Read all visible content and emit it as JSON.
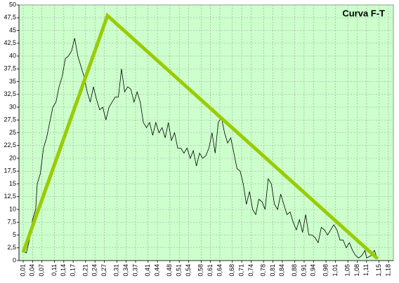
{
  "chart_data": {
    "type": "line",
    "title": "Curva F-T",
    "title_color": "#ff0000",
    "background": "#ccffcc",
    "grid": true,
    "xlim": [
      -0.0035,
      1.1959
    ],
    "ylim": [
      0,
      50
    ],
    "yticks": [
      0,
      {
        "value": 2.5,
        "label": "2,5"
      },
      5,
      {
        "value": 7.5,
        "label": "7,5"
      },
      10,
      {
        "value": 12.5,
        "label": "12,5"
      },
      15,
      {
        "value": 17.5,
        "label": "17,5"
      },
      20,
      {
        "value": 22.5,
        "label": "22,5"
      },
      25,
      {
        "value": 27.5,
        "label": "27,5"
      },
      30,
      {
        "value": 32.5,
        "label": "32,5"
      },
      35,
      {
        "value": 37.5,
        "label": "37,5"
      },
      40,
      {
        "value": 42.5,
        "label": "42,5"
      },
      45,
      {
        "value": 47.5,
        "label": "47,5"
      },
      50
    ],
    "xticks": [
      {
        "value": 0.01,
        "label": "0,01"
      },
      {
        "value": 0.04,
        "label": "0,04"
      },
      {
        "value": 0.07,
        "label": "0,07"
      },
      {
        "value": 0.11,
        "label": "0,11"
      },
      {
        "value": 0.14,
        "label": "0,14"
      },
      {
        "value": 0.17,
        "label": "0,17"
      },
      {
        "value": 0.21,
        "label": "0,21"
      },
      {
        "value": 0.24,
        "label": "0,24"
      },
      {
        "value": 0.27,
        "label": "0,27"
      },
      {
        "value": 0.31,
        "label": "0,31"
      },
      {
        "value": 0.34,
        "label": "0,34"
      },
      {
        "value": 0.37,
        "label": "0,37"
      },
      {
        "value": 0.41,
        "label": "0,41"
      },
      {
        "value": 0.44,
        "label": "0,44"
      },
      {
        "value": 0.48,
        "label": "0,48"
      },
      {
        "value": 0.51,
        "label": "0,51"
      },
      {
        "value": 0.54,
        "label": "0,54"
      },
      {
        "value": 0.58,
        "label": "0,58"
      },
      {
        "value": 0.61,
        "label": "0,61"
      },
      {
        "value": 0.64,
        "label": "0,64"
      },
      {
        "value": 0.68,
        "label": "0,68"
      },
      {
        "value": 0.71,
        "label": "0,71"
      },
      {
        "value": 0.74,
        "label": "0,74"
      },
      {
        "value": 0.78,
        "label": "0,78"
      },
      {
        "value": 0.81,
        "label": "0,81"
      },
      {
        "value": 0.84,
        "label": "0,84"
      },
      {
        "value": 0.88,
        "label": "0,88"
      },
      {
        "value": 0.91,
        "label": "0,91"
      },
      {
        "value": 0.94,
        "label": "0,94"
      },
      {
        "value": 0.98,
        "label": "0,98"
      },
      {
        "value": 1.01,
        "label": "1,01"
      },
      {
        "value": 1.05,
        "label": "1,05"
      },
      {
        "value": 1.08,
        "label": "1,08"
      },
      {
        "value": 1.11,
        "label": "1,11"
      },
      {
        "value": 1.15,
        "label": "1,15"
      },
      {
        "value": 1.18,
        "label": "1,18"
      }
    ],
    "series": [
      {
        "color": "#000000",
        "width": 0.8,
        "x": [
          0.01,
          0.02,
          0.03,
          0.04,
          0.05,
          0.055,
          0.065,
          0.075,
          0.085,
          0.095,
          0.105,
          0.115,
          0.125,
          0.135,
          0.145,
          0.155,
          0.165,
          0.175,
          0.185,
          0.195,
          0.205,
          0.215,
          0.225,
          0.235,
          0.245,
          0.255,
          0.265,
          0.275,
          0.285,
          0.295,
          0.305,
          0.315,
          0.325,
          0.335,
          0.345,
          0.355,
          0.365,
          0.375,
          0.385,
          0.395,
          0.405,
          0.415,
          0.425,
          0.435,
          0.445,
          0.455,
          0.465,
          0.475,
          0.485,
          0.495,
          0.505,
          0.515,
          0.525,
          0.535,
          0.545,
          0.555,
          0.565,
          0.575,
          0.585,
          0.595,
          0.605,
          0.615,
          0.625,
          0.635,
          0.645,
          0.655,
          0.665,
          0.675,
          0.685,
          0.695,
          0.705,
          0.715,
          0.725,
          0.735,
          0.745,
          0.755,
          0.765,
          0.775,
          0.785,
          0.795,
          0.805,
          0.815,
          0.825,
          0.835,
          0.845,
          0.855,
          0.865,
          0.875,
          0.885,
          0.895,
          0.905,
          0.915,
          0.925,
          0.935,
          0.945,
          0.955,
          0.965,
          0.975,
          0.985,
          0.995,
          1.005,
          1.015,
          1.025,
          1.035,
          1.045,
          1.055,
          1.065,
          1.075,
          1.085,
          1.095,
          1.105,
          1.11,
          1.125,
          1.135,
          1.145
        ],
        "values": [
          2,
          1.5,
          4,
          8,
          10,
          15,
          17,
          22,
          24,
          27,
          30,
          31,
          34,
          36,
          39.5,
          40,
          41,
          43.5,
          40,
          38,
          36,
          33,
          31,
          34,
          31.5,
          29.5,
          30,
          27.5,
          30,
          31,
          32,
          32,
          37.5,
          33,
          34,
          33.5,
          31,
          33,
          31,
          27,
          26,
          27,
          24.5,
          27,
          25,
          26,
          24,
          27,
          23.5,
          25,
          22,
          22,
          21,
          22,
          20,
          21.5,
          18.5,
          21,
          20,
          20.5,
          22,
          25,
          21,
          27,
          28,
          25,
          23,
          24,
          21,
          18,
          17.5,
          15,
          11,
          13.5,
          10,
          9,
          12,
          11.5,
          10,
          16,
          15,
          11,
          10,
          13,
          11,
          9,
          9.5,
          7.5,
          6,
          8,
          5.5,
          9,
          5,
          5,
          4.5,
          3.5,
          6.5,
          6,
          5,
          6,
          7,
          6,
          4,
          4,
          2.5,
          3.5,
          2,
          1,
          0.5,
          1,
          2,
          0.5,
          1,
          2,
          0.3
        ]
      },
      {
        "color": "#99cc00",
        "width": 5,
        "x": [
          0.01,
          0.28,
          1.145
        ],
        "values": [
          1.6,
          47.9,
          0.4
        ]
      }
    ]
  }
}
